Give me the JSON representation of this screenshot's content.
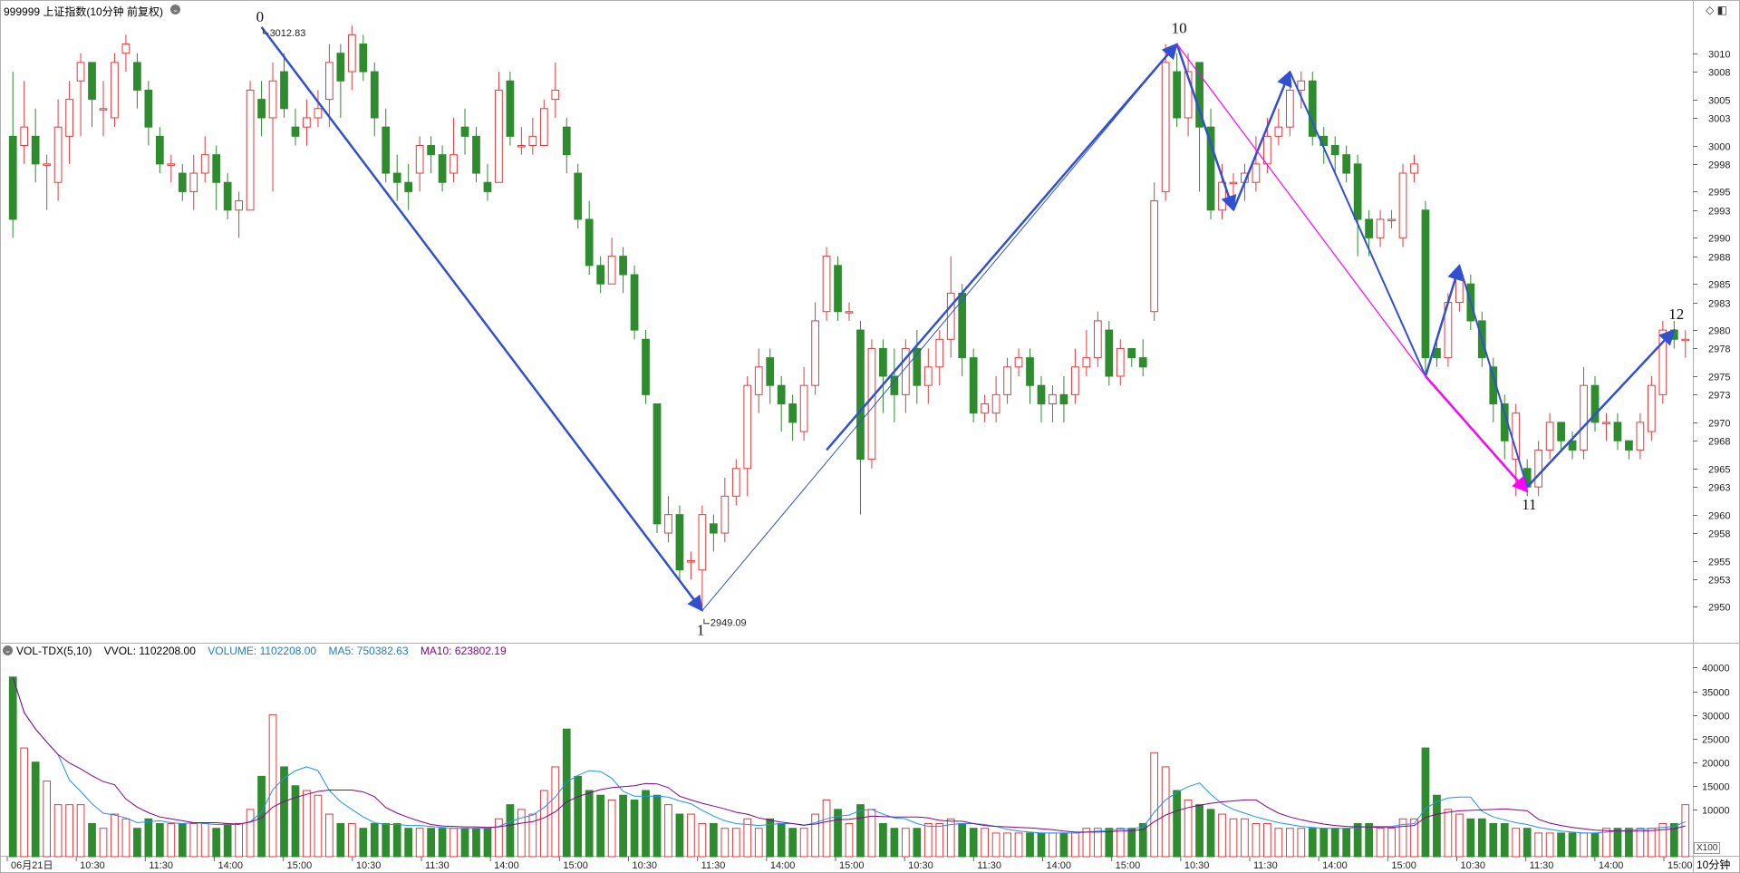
{
  "header": {
    "title": "999999 上证指数(10分钟 前复权)",
    "collapse_glyph": "⌄"
  },
  "volume_header": {
    "indicator": "VOL-TDX(5,10)",
    "vvol": "VVOL: 1102208.00",
    "volume": "VOLUME: 1102208.00",
    "ma5": "MA5: 750382.63",
    "ma10": "MA10: 623802.19"
  },
  "toolbar": {
    "icons": "◇ ◧"
  },
  "vol_unit": "X100",
  "period_label": "10分钟",
  "colors": {
    "up": "#e8393b",
    "down": "#2e8b2e",
    "arrow": "#3050d0",
    "magenta": "#ff00ff",
    "ma5": "#1e90ff",
    "ma10": "#8b008b",
    "grid": "#d8d8d8"
  },
  "chart_data": {
    "type": "candlestick",
    "price_axis": {
      "ticks": [
        2950,
        2953,
        2955,
        2958,
        2960,
        2963,
        2965,
        2968,
        2970,
        2973,
        2975,
        2978,
        2980,
        2983,
        2985,
        2988,
        2990,
        2993,
        2995,
        2998,
        3000,
        3003,
        3005,
        3008,
        3010
      ],
      "range": [
        2947.0,
        3014.0
      ]
    },
    "volume_axis": {
      "ticks": [
        10000,
        15000,
        20000,
        25000,
        30000,
        35000,
        40000
      ],
      "range": [
        0,
        42000
      ]
    },
    "time_axis": [
      "06月21日",
      "10:30",
      "11:30",
      "14:00",
      "15:00",
      "10:30",
      "11:30",
      "14:00",
      "15:00",
      "10:30",
      "11:30",
      "14:00",
      "15:00",
      "10:30",
      "11:30",
      "14:00",
      "15:00",
      "10:30",
      "11:30",
      "14:00",
      "15:00",
      "10:30",
      "11:30",
      "14:00",
      "15:00"
    ],
    "candles": [
      [
        3001,
        2992,
        3008,
        2990,
        38000
      ],
      [
        3000,
        3002,
        3007,
        2998,
        23000
      ],
      [
        3001,
        2998,
        3004,
        2996,
        20000
      ],
      [
        2998,
        2998,
        2999,
        2993,
        16000
      ],
      [
        2996,
        3002,
        3005,
        2994,
        11000
      ],
      [
        3001,
        3005,
        3007,
        2998,
        11000
      ],
      [
        3007,
        3009,
        3010,
        3001,
        11000
      ],
      [
        3009,
        3005,
        3009,
        3002,
        7000
      ],
      [
        3004,
        3004,
        3007,
        3001,
        6000
      ],
      [
        3003,
        3009,
        3010,
        3002,
        9000
      ],
      [
        3010,
        3011,
        3012,
        3008,
        8000
      ],
      [
        3009,
        3006,
        3010,
        3004,
        6000
      ],
      [
        3006,
        3002,
        3007,
        3000,
        8000
      ],
      [
        3001,
        2998,
        3002,
        2997,
        7000
      ],
      [
        2998,
        2998,
        2999,
        2996,
        7000
      ],
      [
        2997,
        2995,
        2998,
        2994,
        7000
      ],
      [
        2995,
        2997,
        2999,
        2993,
        7000
      ],
      [
        2997,
        2999,
        3001,
        2996,
        7000
      ],
      [
        2999,
        2996,
        3000,
        2993,
        6000
      ],
      [
        2996,
        2993,
        2997,
        2992,
        7000
      ],
      [
        2993,
        2994,
        2995,
        2990,
        7000
      ],
      [
        2993,
        3006,
        3007,
        2995,
        10000
      ],
      [
        3005,
        3003,
        3007,
        3001,
        17000
      ],
      [
        3003,
        3007,
        3009,
        2995,
        30000
      ],
      [
        3008,
        3004,
        3010,
        3003,
        19000
      ],
      [
        3002,
        3001,
        3004,
        3000,
        15000
      ],
      [
        3002,
        3003,
        3005,
        3000,
        14000
      ],
      [
        3003,
        3004,
        3006,
        3002,
        13000
      ],
      [
        3005,
        3009,
        3011,
        3002,
        9000
      ],
      [
        3010,
        3007,
        3011,
        3003,
        7000
      ],
      [
        3008,
        3012,
        3013,
        3006,
        7000
      ],
      [
        3011,
        3008,
        3012,
        3007,
        6000
      ],
      [
        3008,
        3003,
        3009,
        3001,
        7000
      ],
      [
        3002,
        2997,
        3004,
        2996,
        7000
      ],
      [
        2997,
        2996,
        2999,
        2994,
        7000
      ],
      [
        2996,
        2995,
        2998,
        2993,
        6000
      ],
      [
        2997,
        3000,
        3001,
        2995,
        6000
      ],
      [
        3000,
        2999,
        3001,
        2997,
        6000
      ],
      [
        2999,
        2996,
        3000,
        2995,
        6000
      ],
      [
        2997,
        2999,
        3003,
        2996,
        6000
      ],
      [
        3002,
        3001,
        3004,
        2999,
        6000
      ],
      [
        3001,
        2997,
        3002,
        2996,
        6000
      ],
      [
        2996,
        2995,
        2998,
        2994,
        6000
      ],
      [
        2996,
        3006,
        3008,
        2996,
        8000
      ],
      [
        3007,
        3001,
        3008,
        3000,
        11000
      ],
      [
        3000,
        3000,
        3002,
        2999,
        10000
      ],
      [
        3000,
        3001,
        3003,
        2999,
        9000
      ],
      [
        3000,
        3004,
        3005,
        3000,
        14000
      ],
      [
        3005,
        3006,
        3009,
        3003,
        19000
      ],
      [
        3002,
        2999,
        3003,
        2997,
        27000
      ],
      [
        2997,
        2992,
        2998,
        2991,
        17000
      ],
      [
        2992,
        2987,
        2994,
        2986,
        14000
      ],
      [
        2987,
        2985,
        2988,
        2984,
        13000
      ],
      [
        2985,
        2988,
        2990,
        2985,
        12000
      ],
      [
        2988,
        2986,
        2989,
        2984,
        13000
      ],
      [
        2986,
        2980,
        2987,
        2979,
        12000
      ],
      [
        2979,
        2973,
        2980,
        2972,
        14000
      ],
      [
        2972,
        2959,
        2972,
        2958,
        13000
      ],
      [
        2958,
        2960,
        2962,
        2957,
        11000
      ],
      [
        2960,
        2954,
        2961,
        2953,
        9000
      ],
      [
        2955,
        2955,
        2956,
        2953,
        9000
      ],
      [
        2954,
        2960,
        2961,
        2950,
        7000
      ],
      [
        2959,
        2958,
        2960,
        2956,
        7000
      ],
      [
        2958,
        2962,
        2964,
        2957,
        6000
      ],
      [
        2962,
        2965,
        2966,
        2961,
        6000
      ],
      [
        2965,
        2974,
        2975,
        2962,
        8000
      ],
      [
        2973,
        2976,
        2978,
        2971,
        6000
      ],
      [
        2977,
        2974,
        2978,
        2972,
        8000
      ],
      [
        2974,
        2972,
        2975,
        2969,
        7000
      ],
      [
        2972,
        2970,
        2973,
        2968,
        6000
      ],
      [
        2969,
        2974,
        2976,
        2968,
        6000
      ],
      [
        2974,
        2981,
        2983,
        2973,
        9000
      ],
      [
        2982,
        2988,
        2989,
        2981,
        12000
      ],
      [
        2987,
        2982,
        2988,
        2981,
        10000
      ],
      [
        2982,
        2982,
        2983,
        2981,
        7000
      ],
      [
        2980,
        2966,
        2981,
        2960,
        11000
      ],
      [
        2966,
        2978,
        2979,
        2965,
        10000
      ],
      [
        2978,
        2975,
        2979,
        2971,
        7000
      ],
      [
        2975,
        2973,
        2978,
        2970,
        6000
      ],
      [
        2973,
        2978,
        2979,
        2971,
        6000
      ],
      [
        2978,
        2974,
        2980,
        2972,
        6000
      ],
      [
        2974,
        2976,
        2978,
        2972,
        7000
      ],
      [
        2976,
        2979,
        2980,
        2974,
        7000
      ],
      [
        2979,
        2984,
        2988,
        2977,
        8000
      ],
      [
        2984,
        2977,
        2985,
        2975,
        7000
      ],
      [
        2977,
        2971,
        2978,
        2970,
        6000
      ],
      [
        2971,
        2972,
        2973,
        2970,
        6000
      ],
      [
        2971,
        2973,
        2975,
        2970,
        5000
      ],
      [
        2973,
        2976,
        2977,
        2972,
        5000
      ],
      [
        2976,
        2977,
        2978,
        2975,
        5000
      ],
      [
        2977,
        2974,
        2978,
        2972,
        5000
      ],
      [
        2974,
        2972,
        2975,
        2970,
        5000
      ],
      [
        2972,
        2973,
        2974,
        2970,
        5000
      ],
      [
        2973,
        2972,
        2975,
        2970,
        5000
      ],
      [
        2973,
        2976,
        2978,
        2972,
        5000
      ],
      [
        2976,
        2977,
        2980,
        2975,
        6000
      ],
      [
        2977,
        2981,
        2982,
        2976,
        6000
      ],
      [
        2980,
        2975,
        2981,
        2974,
        6000
      ],
      [
        2975,
        2978,
        2979,
        2974,
        6000
      ],
      [
        2978,
        2977,
        2978,
        2976,
        6000
      ],
      [
        2977,
        2976,
        2979,
        2975,
        7000
      ],
      [
        2982,
        2994,
        2996,
        2981,
        22000
      ],
      [
        2995,
        3009,
        3011,
        2994,
        19000
      ],
      [
        3008,
        3003,
        3010,
        3002,
        14000
      ],
      [
        3003,
        3008,
        3010,
        3001,
        12000
      ],
      [
        3009,
        3002,
        3009,
        2995,
        11000
      ],
      [
        3002,
        2993,
        3004,
        2992,
        10000
      ],
      [
        2993,
        2996,
        2998,
        2992,
        9000
      ],
      [
        2996,
        2996,
        2997,
        2994,
        8000
      ],
      [
        2996,
        2997,
        2998,
        2994,
        8000
      ],
      [
        2996,
        2998,
        3001,
        2995,
        7000
      ],
      [
        2998,
        3001,
        3003,
        2997,
        7000
      ],
      [
        3001,
        3002,
        3004,
        3000,
        6000
      ],
      [
        3002,
        3006,
        3007,
        3001,
        6000
      ],
      [
        3006,
        3007,
        3008,
        3004,
        6000
      ],
      [
        3007,
        3001,
        3008,
        3000,
        6000
      ],
      [
        3001,
        3000,
        3002,
        2998,
        6000
      ],
      [
        3000,
        2999,
        3001,
        2997,
        6000
      ],
      [
        2999,
        2997,
        3000,
        2996,
        6000
      ],
      [
        2998,
        2992,
        2999,
        2988,
        7000
      ],
      [
        2992,
        2990,
        2993,
        2988,
        7000
      ],
      [
        2990,
        2992,
        2993,
        2989,
        6000
      ],
      [
        2992,
        2992,
        2993,
        2991,
        6000
      ],
      [
        2990,
        2997,
        2998,
        2989,
        8000
      ],
      [
        2997,
        2998,
        2999,
        2996,
        8000
      ],
      [
        2993,
        2977,
        2994,
        2975,
        23000
      ],
      [
        2978,
        2977,
        2979,
        2976,
        13000
      ],
      [
        2977,
        2983,
        2984,
        2976,
        10000
      ],
      [
        2983,
        2986,
        2987,
        2982,
        9000
      ],
      [
        2985,
        2981,
        2986,
        2980,
        8000
      ],
      [
        2981,
        2977,
        2982,
        2976,
        8000
      ],
      [
        2976,
        2972,
        2977,
        2970,
        7000
      ],
      [
        2972,
        2968,
        2973,
        2966,
        7000
      ],
      [
        2966,
        2971,
        2972,
        2962,
        6000
      ],
      [
        2965,
        2963,
        2966,
        2962,
        6000
      ],
      [
        2963,
        2967,
        2968,
        2962,
        5000
      ],
      [
        2967,
        2970,
        2971,
        2966,
        5000
      ],
      [
        2970,
        2968,
        2970,
        2967,
        5000
      ],
      [
        2968,
        2967,
        2969,
        2966,
        5000
      ],
      [
        2967,
        2974,
        2976,
        2966,
        5000
      ],
      [
        2974,
        2970,
        2975,
        2969,
        5000
      ],
      [
        2970,
        2970,
        2971,
        2968,
        6000
      ],
      [
        2970,
        2968,
        2971,
        2967,
        6000
      ],
      [
        2968,
        2967,
        2968,
        2966,
        6000
      ],
      [
        2967,
        2970,
        2971,
        2966,
        6000
      ],
      [
        2969,
        2974,
        2975,
        2968,
        6000
      ],
      [
        2973,
        2980,
        2981,
        2972,
        7000
      ],
      [
        2980,
        2979,
        2981,
        2978,
        7000
      ],
      [
        2979,
        2979,
        2980,
        2977,
        11000
      ]
    ],
    "wave_labels": [
      {
        "label": "0",
        "price": 3012.83,
        "value_text": "3012.83"
      },
      {
        "label": "1",
        "price": 2949.09,
        "value_text": "2949.09"
      },
      {
        "label": "10",
        "price": 3011.0
      },
      {
        "label": "11",
        "price": 2962.5
      },
      {
        "label": "12",
        "price": 2980.0
      }
    ]
  }
}
